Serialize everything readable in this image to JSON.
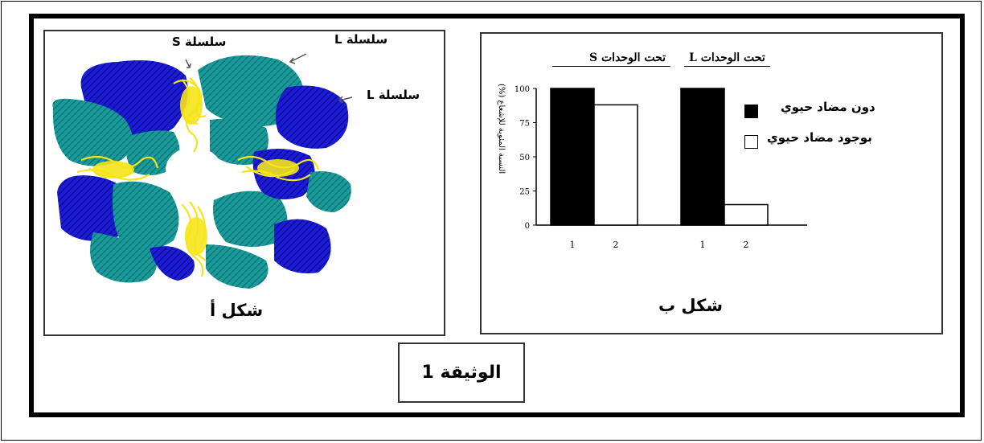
{
  "document": {
    "caption": "الوثيقة 1"
  },
  "figure_a": {
    "title": "شكل أ",
    "labels": {
      "chain_s": "سلسلة S",
      "chain_l_top": "سلسلة L",
      "chain_l_right": "سلسلة L"
    },
    "colors": {
      "teal": "#1a9b9b",
      "blue": "#1a1ad6",
      "yellow": "#f5e41a"
    }
  },
  "figure_b": {
    "title": "شكل ب",
    "group_s_label": "تحت الوحدات S",
    "group_l_label": "تحت الوحدات L",
    "ylabel": "النسبة المئوية للإشعاع (%)",
    "legend": {
      "without": "دون مضاد حيوي",
      "with": "بوجود مضاد حيوي"
    }
  },
  "chart_data": {
    "type": "bar",
    "ylabel": "النسبة المئوية للإشعاع (%)",
    "ylim": [
      0,
      100
    ],
    "yticks": [
      "0",
      "25",
      "50",
      "75",
      "100"
    ],
    "groups": [
      "تحت الوحدات S",
      "تحت الوحدات L"
    ],
    "categories": [
      "1",
      "2"
    ],
    "series": [
      {
        "name": "دون مضاد حيوي",
        "color": "#000000",
        "values": [
          100,
          100
        ]
      },
      {
        "name": "بوجود مضاد حيوي",
        "color": "#ffffff",
        "values": [
          88,
          15
        ]
      }
    ],
    "grid": false,
    "legend_position": "right"
  }
}
